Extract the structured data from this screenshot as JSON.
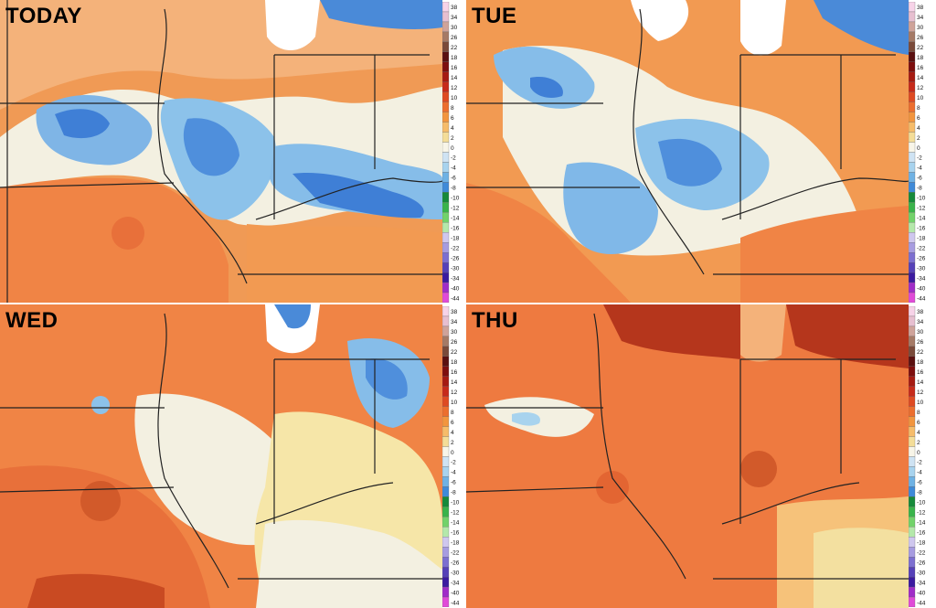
{
  "panels": [
    {
      "id": "today",
      "label": "TODAY",
      "dominant": "mixed-cool"
    },
    {
      "id": "tue",
      "label": "TUE",
      "dominant": "mixed"
    },
    {
      "id": "wed",
      "label": "WED",
      "dominant": "mostly-warm"
    },
    {
      "id": "thu",
      "label": "THU",
      "dominant": "warm"
    }
  ],
  "colorbar": {
    "ticks": [
      "38",
      "34",
      "30",
      "26",
      "22",
      "18",
      "16",
      "14",
      "12",
      "10",
      "8",
      "6",
      "4",
      "2",
      "0",
      "-2",
      "-4",
      "-6",
      "-8",
      "-10",
      "-12",
      "-14",
      "-16",
      "-18",
      "-22",
      "-26",
      "-30",
      "-34",
      "-40",
      "-44"
    ],
    "colors": [
      "#f7d3e8",
      "#e7bfd0",
      "#cfa39a",
      "#a57a66",
      "#7a4a3a",
      "#5a1010",
      "#7d0e0e",
      "#a51a12",
      "#c62a1a",
      "#de4a22",
      "#ec6e2e",
      "#f2953e",
      "#f6bc6a",
      "#f4dd98",
      "#f8f5e8",
      "#cfe3f3",
      "#a8d3ee",
      "#6fb2e4",
      "#3f8ad8",
      "#168a3a",
      "#39b34a",
      "#72d26a",
      "#b4e8aa",
      "#cfc7ee",
      "#a79ce0",
      "#7d6fd0",
      "#5641b8",
      "#3b1aa0",
      "#a02cc8",
      "#e04ad8"
    ]
  }
}
